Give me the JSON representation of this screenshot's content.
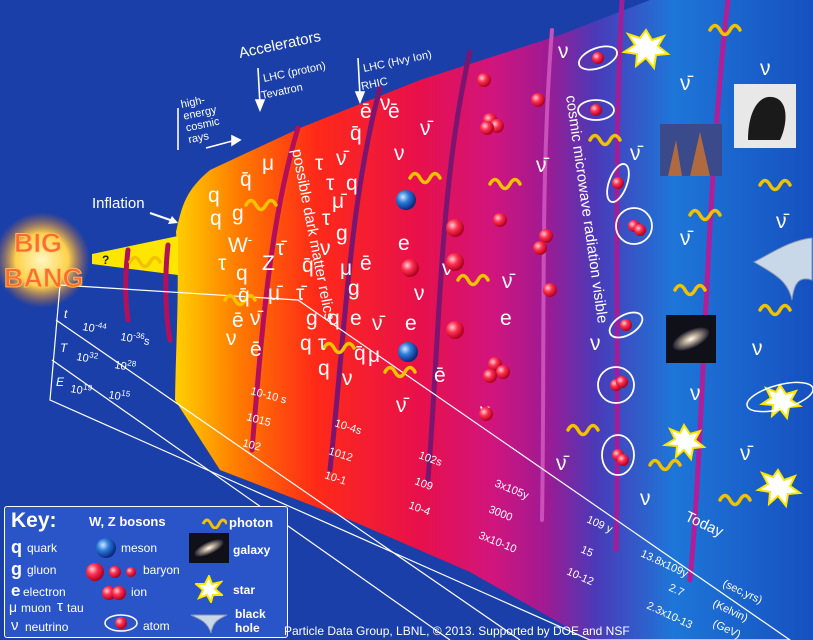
{
  "big_bang": {
    "line1": "BIG",
    "line2": "BANG",
    "question": "?"
  },
  "inflation": "Inflation",
  "accelerators": {
    "title": "Accelerators",
    "lhc_proton": "LHC (proton)",
    "tevatron": "Tevatron",
    "lhc_ion": "LHC (Hvy Ion)",
    "rhic": "RHIC",
    "cosmic": [
      "high-",
      "energy",
      "cosmic",
      "rays"
    ]
  },
  "band_labels": {
    "dark_matter": "possible dark matter relics",
    "cmb": "cosmic microwave radiation visible",
    "today": "Today"
  },
  "axis": {
    "t": "t",
    "T": "T",
    "E": "E",
    "t1": "10",
    "t1e": "-44",
    "t2": "10",
    "t2e": "-36",
    "t2u": "s",
    "T1": "10",
    "T1e": "32",
    "T2": "10",
    "T2e": "28",
    "E1": "10",
    "E1e": "19",
    "E2": "10",
    "E2e": "15",
    "m1": [
      "10-10 s",
      "1015",
      "102"
    ],
    "m2": [
      "10-4s",
      "1012",
      "10-1"
    ],
    "m3": [
      "102s",
      "109",
      "10-4"
    ],
    "m4": [
      "3x105y",
      "3000",
      "3x10-10"
    ],
    "m5": [
      "109 y",
      "15",
      "10-12"
    ],
    "m6": [
      "13.8x109y",
      "2.7",
      "2.3x10-13"
    ],
    "units": [
      "(sec,yrs)",
      "(Kelvin)",
      "(GeV)"
    ]
  },
  "key": {
    "title": "Key:",
    "wz": "W, Z bosons",
    "photon": "photon",
    "quark_sym": "q",
    "quark": "quark",
    "meson": "meson",
    "galaxy": "galaxy",
    "gluon_sym": "g",
    "gluon": "gluon",
    "baryon": "baryon",
    "electron_sym": "e",
    "electron": "electron",
    "muon_sym": "μ",
    "muon": "muon",
    "tau_sym": "τ",
    "tau": "tau",
    "ion": "ion",
    "star": "star",
    "neutrino_sym": "ν",
    "neutrino": "neutrino",
    "atom": "atom",
    "black_hole": [
      "black",
      "hole"
    ]
  },
  "footer": "Particle Data Group, LBNL, © 2013.   Supported by DOE and NSF",
  "colors": {
    "bg": "#1a3fa8",
    "hot": "#ffe600",
    "red": "#e8102a",
    "magenta": "#c8157a",
    "purple": "#7a1a9a",
    "blue": "#2560d8",
    "photon": "#f2c200"
  }
}
